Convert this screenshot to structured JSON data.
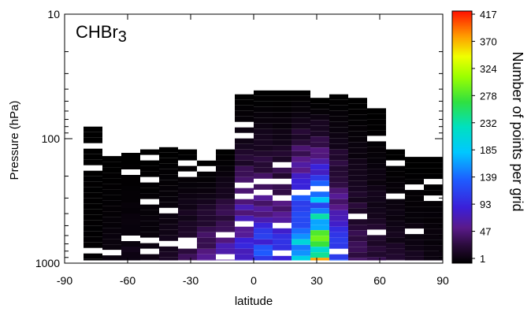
{
  "chart_data": {
    "type": "heatmap",
    "title": "",
    "species_label": "CHBr",
    "species_subscript": "3",
    "xlabel": "latitude",
    "ylabel": "Pressure (hPa)",
    "x_range": [
      -90,
      90
    ],
    "x_ticks": [
      "-90",
      "-60",
      "-30",
      "0",
      "30",
      "60",
      "90"
    ],
    "y_scale": "log",
    "y_range_hPa": [
      1000,
      10
    ],
    "y_ticks": [
      "10",
      "100",
      "1000"
    ],
    "colorbar": {
      "label": "Number of points per grid",
      "min": 1,
      "max": 417,
      "ticks": [
        "417",
        "370",
        "324",
        "278",
        "232",
        "185",
        "139",
        "93",
        "47",
        "1"
      ],
      "colormap": "rainbow"
    },
    "cell_size_deg": 9,
    "columns": [
      {
        "lat": -76.5,
        "ptop": 80,
        "pbot": 950,
        "peak": 3
      },
      {
        "lat": -67.5,
        "ptop": 138,
        "pbot": 950,
        "peak": 12
      },
      {
        "lat": -58.5,
        "ptop": 130,
        "pbot": 950,
        "peak": 18
      },
      {
        "lat": -49.5,
        "ptop": 122,
        "pbot": 950,
        "peak": 16
      },
      {
        "lat": -40.5,
        "ptop": 117,
        "pbot": 950,
        "peak": 24
      },
      {
        "lat": -31.5,
        "ptop": 122,
        "pbot": 950,
        "peak": 48
      },
      {
        "lat": -22.5,
        "ptop": 150,
        "pbot": 950,
        "peak": 80
      },
      {
        "lat": -13.5,
        "ptop": 122,
        "pbot": 950,
        "peak": 110
      },
      {
        "lat": -4.5,
        "ptop": 44,
        "pbot": 950,
        "peak": 150
      },
      {
        "lat": 4.5,
        "ptop": 41,
        "pbot": 950,
        "peak": 160
      },
      {
        "lat": 13.5,
        "ptop": 41,
        "pbot": 950,
        "peak": 140
      },
      {
        "lat": 22.5,
        "ptop": 41,
        "pbot": 950,
        "peak": 300
      },
      {
        "lat": 31.5,
        "ptop": 47,
        "pbot": 950,
        "peak": 417
      },
      {
        "lat": 40.5,
        "ptop": 44,
        "pbot": 950,
        "peak": 150
      },
      {
        "lat": 49.5,
        "ptop": 47,
        "pbot": 950,
        "peak": 60
      },
      {
        "lat": 58.5,
        "ptop": 57,
        "pbot": 950,
        "peak": 40
      },
      {
        "lat": 67.5,
        "ptop": 122,
        "pbot": 950,
        "peak": 28
      },
      {
        "lat": 76.5,
        "ptop": 140,
        "pbot": 950,
        "peak": 20
      },
      {
        "lat": 85.5,
        "ptop": 140,
        "pbot": 950,
        "peak": 12
      }
    ]
  }
}
